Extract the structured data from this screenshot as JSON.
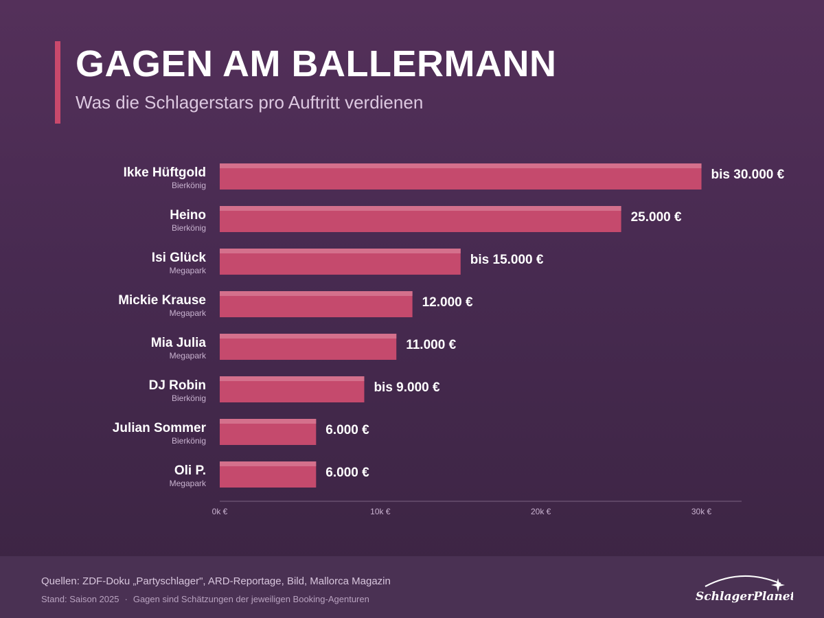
{
  "header": {
    "title": "GAGEN AM BALLERMANN",
    "subtitle": "Was die Schlagerstars pro Auftritt verdienen"
  },
  "colors": {
    "bar": "#c54a6d",
    "bar_highlight": "#d4708c",
    "background_top": "#54305a",
    "background_bottom": "#3b2442",
    "accent": "#c9496c"
  },
  "chart_data": {
    "type": "bar",
    "orientation": "horizontal",
    "categories": [
      "Ikke Hüftgold",
      "Heino",
      "Isi Glück",
      "Mickie Krause",
      "Mia Julia",
      "DJ Robin",
      "Julian Sommer",
      "Oli P."
    ],
    "venues": [
      "Bierkönig",
      "Bierkönig",
      "Megapark",
      "Megapark",
      "Megapark",
      "Bierkönig",
      "Bierkönig",
      "Megapark"
    ],
    "values": [
      30000,
      25000,
      15000,
      12000,
      11000,
      9000,
      6000,
      6000
    ],
    "value_labels": [
      "bis 30.000 €",
      "25.000 €",
      "bis 15.000 €",
      "12.000 €",
      "11.000 €",
      "bis 9.000 €",
      "6.000 €",
      "6.000 €"
    ],
    "xlim": [
      0,
      32500
    ],
    "x_ticks": [
      0,
      10000,
      20000,
      30000
    ],
    "x_tick_labels": [
      "0k €",
      "10k €",
      "20k €",
      "30k €"
    ],
    "grid": false
  },
  "footer": {
    "sources": "Quellen: ZDF-Doku „Partyschlager\", ARD-Reportage, Bild, Mallorca Magazin",
    "stand": "Stand: Saison 2025",
    "separator": "·",
    "note": "Gagen sind Schätzungen der jeweiligen Booking-Agenturen",
    "logo_text": "SchlagerPlanet"
  }
}
